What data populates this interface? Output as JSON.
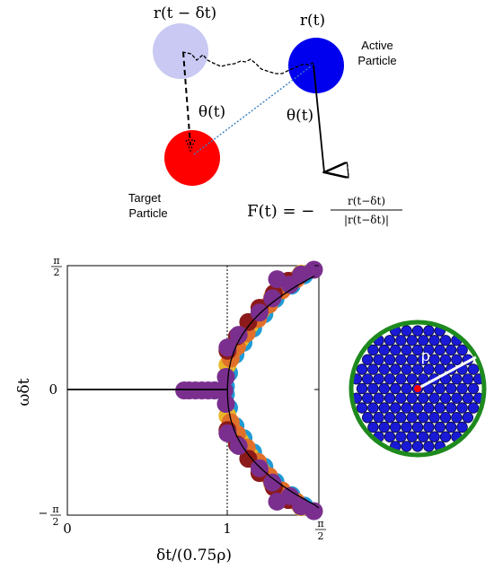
{
  "diagram": {
    "label_r_delayed": "r(t − δt)",
    "label_r_now": "r(t)",
    "active_label_line1": "Active",
    "active_label_line2": "Particle",
    "target_label_line1": "Target",
    "target_label_line2": "Particle",
    "theta_left": "θ(t)",
    "theta_right": "θ(t)",
    "force_lhs": "F(t) = −",
    "force_num": "r(t−δt)",
    "force_den": "|r(t−δt)|",
    "colors": {
      "ghost": "#c9c9f4",
      "active": "#0000ee",
      "target": "#ff0000"
    }
  },
  "chart_data": {
    "type": "scatter",
    "xlabel": "δt/(0.75ρ)",
    "ylabel": "ωδt",
    "x_ticks": [
      "0",
      "1",
      "π/2"
    ],
    "y_ticks": [
      "π/2",
      "0",
      "−π/2"
    ],
    "xlim": [
      0,
      1.5708
    ],
    "ylim": [
      -1.5708,
      1.5708
    ],
    "vline_x": 1,
    "series_colors": [
      "#1f9bd6",
      "#e8b62a",
      "#e0702a",
      "#8c1a1a",
      "#7a2f8e"
    ],
    "points": [
      [
        0.92,
        0.0,
        0
      ],
      [
        0.99,
        0.05,
        0
      ],
      [
        1.01,
        0.22,
        0
      ],
      [
        1.05,
        0.45,
        0
      ],
      [
        1.1,
        0.6,
        0
      ],
      [
        1.16,
        0.78,
        0
      ],
      [
        1.23,
        0.96,
        0
      ],
      [
        1.3,
        1.15,
        0
      ],
      [
        1.4,
        1.32,
        0
      ],
      [
        1.48,
        1.45,
        0
      ],
      [
        0.99,
        -0.05,
        0
      ],
      [
        1.01,
        -0.22,
        0
      ],
      [
        1.05,
        -0.45,
        0
      ],
      [
        1.1,
        -0.6,
        0
      ],
      [
        1.16,
        -0.78,
        0
      ],
      [
        1.23,
        -0.96,
        0
      ],
      [
        1.3,
        -1.15,
        0
      ],
      [
        1.4,
        -1.32,
        0
      ],
      [
        1.48,
        -1.45,
        0
      ],
      [
        1.0,
        0.32,
        1
      ],
      [
        1.03,
        0.5,
        1
      ],
      [
        1.08,
        0.64,
        1
      ],
      [
        1.14,
        0.82,
        1
      ],
      [
        1.21,
        1.0,
        1
      ],
      [
        1.28,
        1.18,
        1
      ],
      [
        1.37,
        1.35,
        1
      ],
      [
        1.46,
        1.47,
        1
      ],
      [
        1.0,
        -0.32,
        1
      ],
      [
        1.03,
        -0.5,
        1
      ],
      [
        1.08,
        -0.64,
        1
      ],
      [
        1.14,
        -0.82,
        1
      ],
      [
        1.21,
        -1.0,
        1
      ],
      [
        1.28,
        -1.18,
        1
      ],
      [
        1.37,
        -1.35,
        1
      ],
      [
        1.46,
        -1.47,
        1
      ],
      [
        1.02,
        0.4,
        2
      ],
      [
        1.06,
        0.55,
        2
      ],
      [
        1.12,
        0.72,
        2
      ],
      [
        1.19,
        0.9,
        2
      ],
      [
        1.26,
        1.08,
        2
      ],
      [
        1.34,
        1.26,
        2
      ],
      [
        1.43,
        1.4,
        2
      ],
      [
        1.02,
        -0.4,
        2
      ],
      [
        1.06,
        -0.55,
        2
      ],
      [
        1.12,
        -0.72,
        2
      ],
      [
        1.19,
        -0.9,
        2
      ],
      [
        1.26,
        -1.08,
        2
      ],
      [
        1.34,
        -1.26,
        2
      ],
      [
        1.43,
        -1.4,
        2
      ],
      [
        1.0,
        0.5,
        3
      ],
      [
        1.06,
        0.68,
        3
      ],
      [
        1.13,
        0.86,
        3
      ],
      [
        1.2,
        1.04,
        3
      ],
      [
        1.29,
        1.22,
        3
      ],
      [
        1.38,
        1.38,
        3
      ],
      [
        1.0,
        -0.5,
        3
      ],
      [
        1.06,
        -0.68,
        3
      ],
      [
        1.13,
        -0.86,
        3
      ],
      [
        1.2,
        -1.04,
        3
      ],
      [
        1.29,
        -1.22,
        3
      ],
      [
        1.38,
        -1.38,
        3
      ],
      [
        0.73,
        0.0,
        4
      ],
      [
        0.76,
        0.0,
        4
      ],
      [
        0.8,
        0.0,
        4
      ],
      [
        0.84,
        0.0,
        4
      ],
      [
        0.88,
        0.0,
        4
      ],
      [
        0.92,
        0.0,
        4
      ],
      [
        0.98,
        0.0,
        4
      ],
      [
        0.99,
        0.17,
        4
      ],
      [
        0.99,
        -0.17,
        4
      ],
      [
        1.0,
        0.54,
        4
      ],
      [
        1.0,
        -0.54,
        4
      ],
      [
        1.07,
        0.7,
        4
      ],
      [
        1.07,
        -0.7,
        4
      ],
      [
        1.2,
        0.98,
        4
      ],
      [
        1.2,
        -0.98,
        4
      ],
      [
        1.28,
        1.16,
        4
      ],
      [
        1.28,
        -1.16,
        4
      ],
      [
        1.39,
        1.33,
        4
      ],
      [
        1.39,
        -1.33,
        4
      ],
      [
        1.46,
        1.46,
        4
      ],
      [
        1.46,
        -1.46,
        4
      ],
      [
        1.54,
        1.52,
        4
      ],
      [
        1.54,
        -1.52,
        4
      ],
      [
        1.31,
        1.4,
        4
      ],
      [
        1.31,
        -1.4,
        4
      ]
    ]
  },
  "packing": {
    "rho_label": "ρ",
    "colors": {
      "disk": "#1a1ad6",
      "ring": "#1e8a1e",
      "center": "#ff0000",
      "radius_line": "#ffffff"
    }
  }
}
